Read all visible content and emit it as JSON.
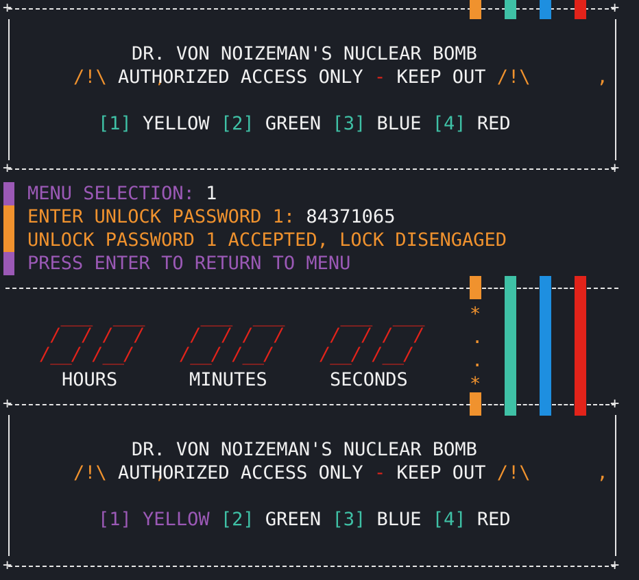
{
  "banner": {
    "title": "DR. VON NOIZEMAN'S NUCLEAR BOMB",
    "comma": ",",
    "warn_icon": "/!\\",
    "access": "AUTHORIZED ACCESS ONLY",
    "dash": "-",
    "keep_out": "KEEP OUT",
    "options": [
      {
        "key": "[1]",
        "label": "YELLOW"
      },
      {
        "key": "[2]",
        "label": "GREEN"
      },
      {
        "key": "[3]",
        "label": "BLUE"
      },
      {
        "key": "[4]",
        "label": "RED"
      }
    ]
  },
  "menu": {
    "selection_label": "MENU SELECTION:",
    "selection_value": "1",
    "enter_label": "ENTER UNLOCK PASSWORD 1:",
    "enter_value": "84371065",
    "accepted": "UNLOCK PASSWORD 1 ACCEPTED, LOCK DISENGAGED",
    "return": "PRESS ENTER TO RETURN TO MENU"
  },
  "timer": {
    "hours_label": "HOURS",
    "minutes_label": "MINUTES",
    "seconds_label": "SECONDS",
    "separator_top": "*",
    "separator_dot": ".",
    "separator_bottom": "*"
  },
  "wires": [
    {
      "name": "yellow",
      "color": "#f0922e",
      "state": "cut"
    },
    {
      "name": "green",
      "color": "#3fc1a6",
      "state": "intact"
    },
    {
      "name": "blue",
      "color": "#1e8fe0",
      "state": "intact"
    },
    {
      "name": "red",
      "color": "#e2231a",
      "state": "intact"
    }
  ],
  "colors": {
    "background": "#1c1f26",
    "orange": "#f0922e",
    "purple": "#9b59b6",
    "teal": "#3fc1a6",
    "red": "#e2231a",
    "blue": "#1e8fe0"
  }
}
